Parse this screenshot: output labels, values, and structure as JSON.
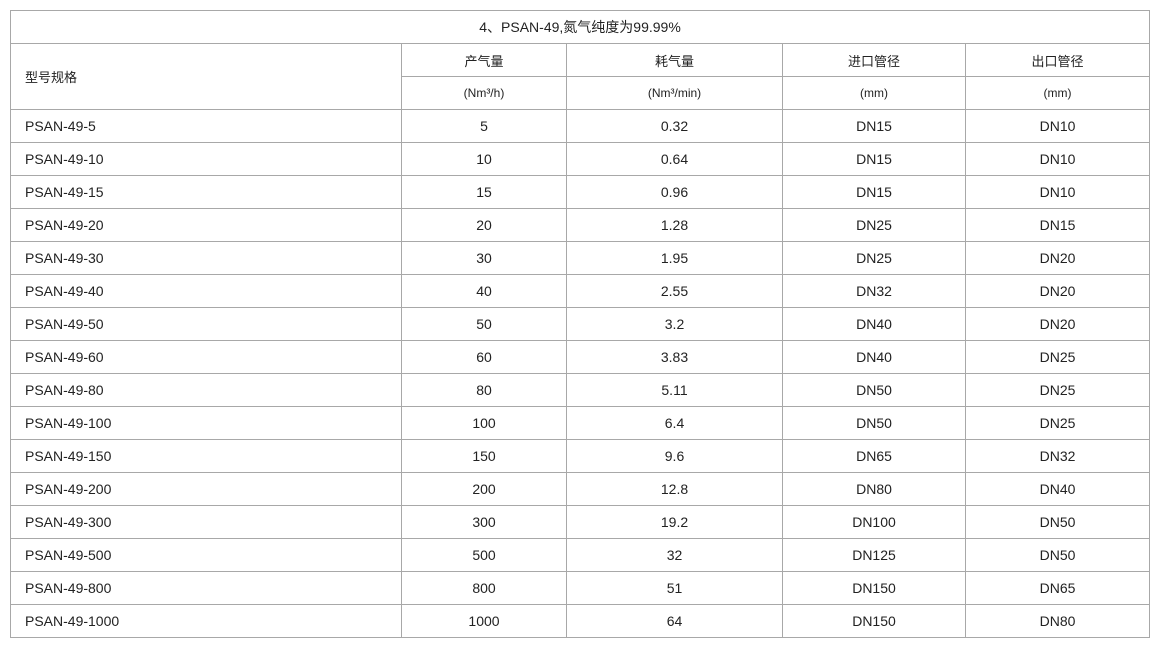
{
  "title": "4、PSAN-49,氮气纯度为99.99%",
  "headers": {
    "model": "型号规格",
    "output": "产气量",
    "consumption": "耗气量",
    "inlet": "进口管径",
    "outlet": "出口管径"
  },
  "units": {
    "output": "(Nm³/h)",
    "consumption": "(Nm³/min)",
    "inlet": "(mm)",
    "outlet": "(mm)"
  },
  "rows": [
    [
      "PSAN-49-5",
      "5",
      "0.32",
      "DN15",
      "DN10"
    ],
    [
      "PSAN-49-10",
      "10",
      "0.64",
      "DN15",
      "DN10"
    ],
    [
      "PSAN-49-15",
      "15",
      "0.96",
      "DN15",
      "DN10"
    ],
    [
      "PSAN-49-20",
      "20",
      "1.28",
      "DN25",
      "DN15"
    ],
    [
      "PSAN-49-30",
      "30",
      "1.95",
      "DN25",
      "DN20"
    ],
    [
      "PSAN-49-40",
      "40",
      "2.55",
      "DN32",
      "DN20"
    ],
    [
      "PSAN-49-50",
      "50",
      "3.2",
      "DN40",
      "DN20"
    ],
    [
      "PSAN-49-60",
      "60",
      "3.83",
      "DN40",
      "DN25"
    ],
    [
      "PSAN-49-80",
      "80",
      "5.11",
      "DN50",
      "DN25"
    ],
    [
      "PSAN-49-100",
      "100",
      "6.4",
      "DN50",
      "DN25"
    ],
    [
      "PSAN-49-150",
      "150",
      "9.6",
      "DN65",
      "DN32"
    ],
    [
      "PSAN-49-200",
      "200",
      "12.8",
      "DN80",
      "DN40"
    ],
    [
      "PSAN-49-300",
      "300",
      "19.2",
      "DN100",
      "DN50"
    ],
    [
      "PSAN-49-500",
      "500",
      "32",
      "DN125",
      "DN50"
    ],
    [
      "PSAN-49-800",
      "800",
      "51",
      "DN150",
      "DN65"
    ],
    [
      "PSAN-49-1000",
      "1000",
      "64",
      "DN150",
      "DN80"
    ]
  ]
}
